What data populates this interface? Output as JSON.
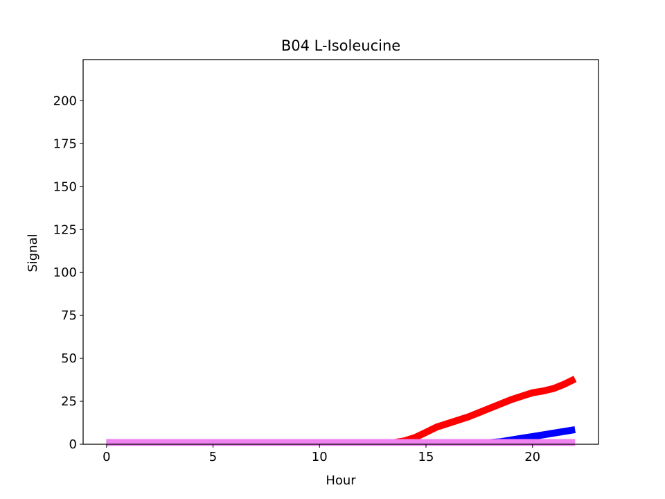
{
  "chart_data": {
    "type": "line",
    "title": "B04 L-Isoleucine",
    "xlabel": "Hour",
    "ylabel": "Signal",
    "xlim": [
      -1.1,
      23.1
    ],
    "ylim": [
      0,
      224
    ],
    "xticks": [
      0,
      5,
      10,
      15,
      20
    ],
    "yticks": [
      0,
      25,
      50,
      75,
      100,
      125,
      150,
      175,
      200
    ],
    "grid": false,
    "legend": "none",
    "series": [
      {
        "color": "#ff0000",
        "x": [
          0,
          2,
          4,
          6,
          8,
          10,
          12,
          13,
          13.5,
          14,
          14.5,
          15,
          15.5,
          16,
          17,
          18,
          19,
          20,
          20.5,
          21,
          21.5,
          22
        ],
        "y": [
          1,
          1,
          1,
          1,
          1,
          1,
          1,
          1,
          1,
          2,
          4,
          7,
          10,
          12,
          16,
          21,
          26,
          30,
          31,
          32.5,
          35,
          38
        ]
      },
      {
        "color": "#0000ff",
        "x": [
          0,
          2,
          4,
          6,
          8,
          10,
          12,
          14,
          16,
          17,
          18,
          18.5,
          19,
          19.5,
          20,
          21,
          22
        ],
        "y": [
          1,
          1,
          1,
          1,
          1,
          1,
          1,
          1,
          1,
          1,
          1,
          1.5,
          2.5,
          3.5,
          4.5,
          6.5,
          8.5
        ]
      },
      {
        "color": "#ee82ee",
        "x": [
          0,
          2,
          4,
          6,
          8,
          10,
          12,
          14,
          16,
          18,
          20,
          22
        ],
        "y": [
          1,
          1,
          1,
          1,
          1,
          1,
          1,
          1,
          1,
          1,
          1,
          1
        ]
      }
    ]
  }
}
